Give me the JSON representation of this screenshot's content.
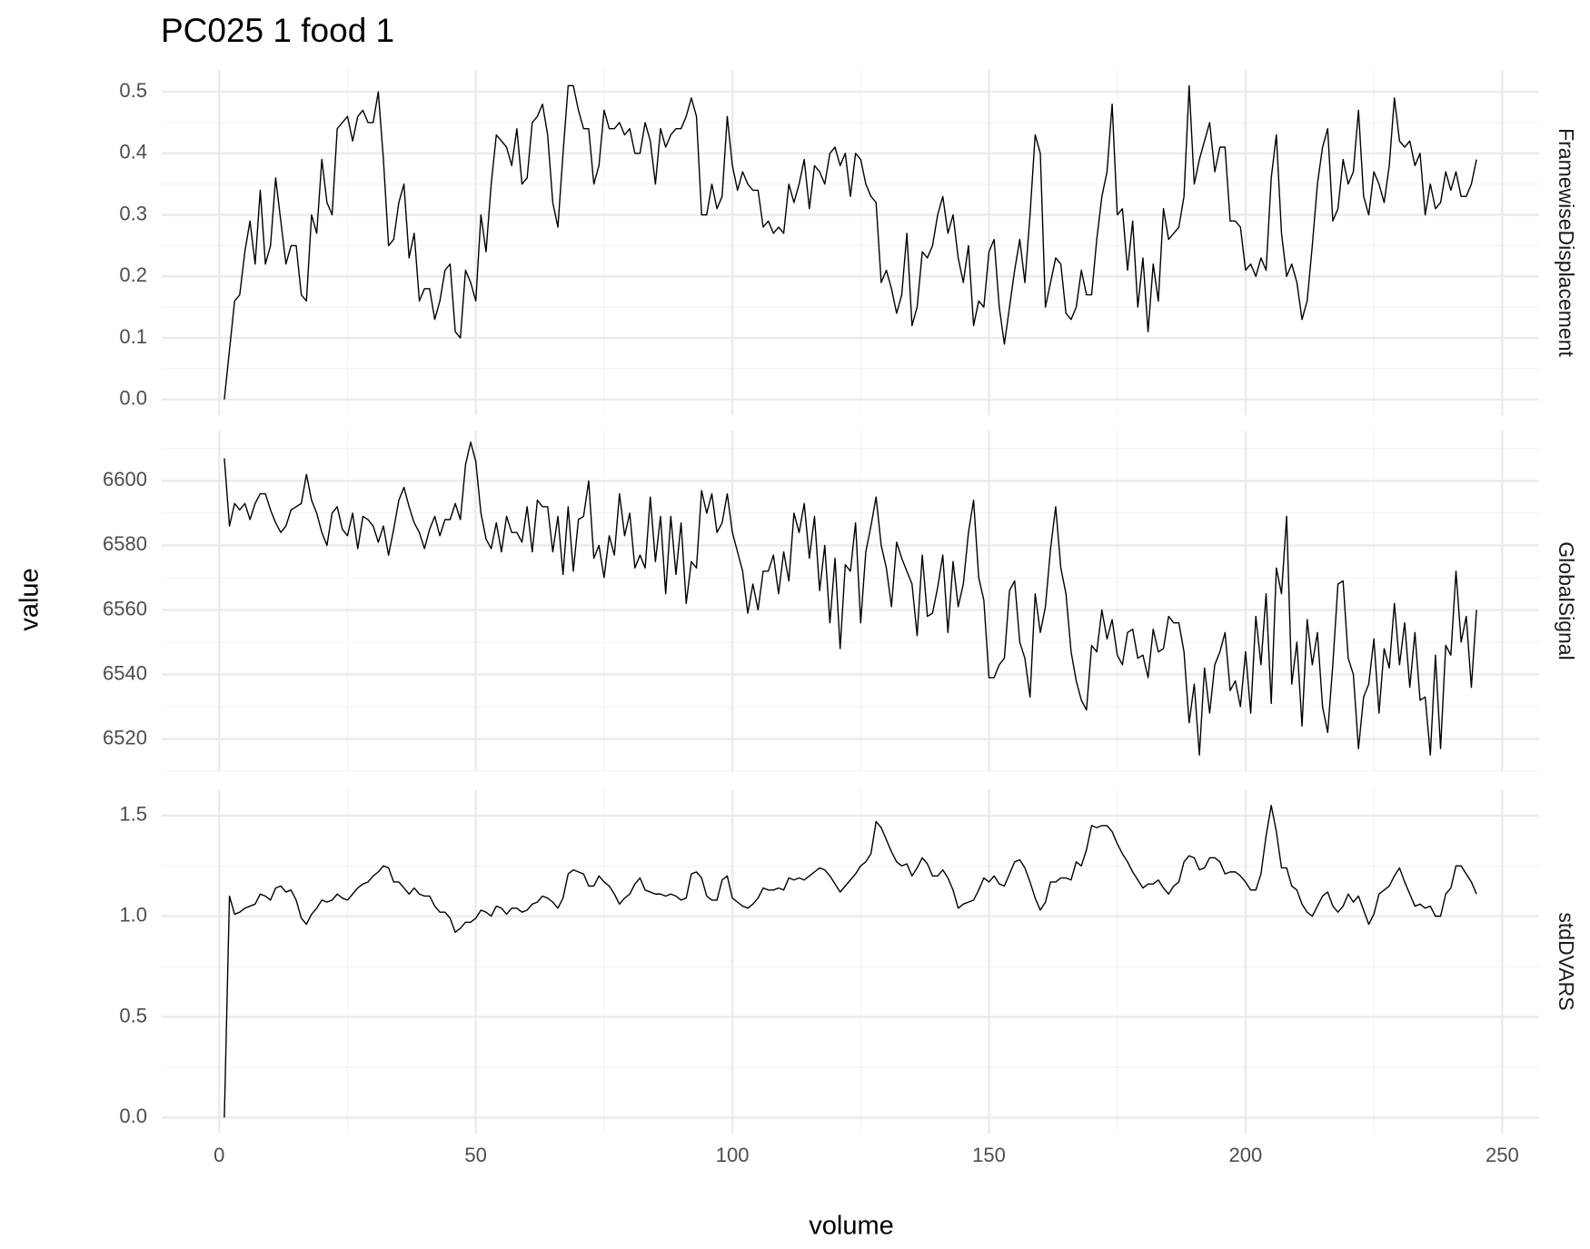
{
  "chart_data": {
    "type": "line",
    "title": "PC025  1  food  1",
    "x_label": "volume",
    "y_label": "value",
    "color": "#000000",
    "grid": true,
    "xlim": [
      -11.2,
      257.2
    ],
    "xticks": [
      0,
      50,
      100,
      150,
      200,
      250
    ],
    "xminor": [
      25,
      75,
      125,
      175,
      225
    ],
    "x": [
      1,
      2,
      3,
      4,
      5,
      6,
      7,
      8,
      9,
      10,
      11,
      12,
      13,
      14,
      15,
      16,
      17,
      18,
      19,
      20,
      21,
      22,
      23,
      24,
      25,
      26,
      27,
      28,
      29,
      30,
      31,
      32,
      33,
      34,
      35,
      36,
      37,
      38,
      39,
      40,
      41,
      42,
      43,
      44,
      45,
      46,
      47,
      48,
      49,
      50,
      51,
      52,
      53,
      54,
      55,
      56,
      57,
      58,
      59,
      60,
      61,
      62,
      63,
      64,
      65,
      66,
      67,
      68,
      69,
      70,
      71,
      72,
      73,
      74,
      75,
      76,
      77,
      78,
      79,
      80,
      81,
      82,
      83,
      84,
      85,
      86,
      87,
      88,
      89,
      90,
      91,
      92,
      93,
      94,
      95,
      96,
      97,
      98,
      99,
      100,
      101,
      102,
      103,
      104,
      105,
      106,
      107,
      108,
      109,
      110,
      111,
      112,
      113,
      114,
      115,
      116,
      117,
      118,
      119,
      120,
      121,
      122,
      123,
      124,
      125,
      126,
      127,
      128,
      129,
      130,
      131,
      132,
      133,
      134,
      135,
      136,
      137,
      138,
      139,
      140,
      141,
      142,
      143,
      144,
      145,
      146,
      147,
      148,
      149,
      150,
      151,
      152,
      153,
      154,
      155,
      156,
      157,
      158,
      159,
      160,
      161,
      162,
      163,
      164,
      165,
      166,
      167,
      168,
      169,
      170,
      171,
      172,
      173,
      174,
      175,
      176,
      177,
      178,
      179,
      180,
      181,
      182,
      183,
      184,
      185,
      186,
      187,
      188,
      189,
      190,
      191,
      192,
      193,
      194,
      195,
      196,
      197,
      198,
      199,
      200,
      201,
      202,
      203,
      204,
      205,
      206,
      207,
      208,
      209,
      210,
      211,
      212,
      213,
      214,
      215,
      216,
      217,
      218,
      219,
      220,
      221,
      222,
      223,
      224,
      225,
      226,
      227,
      228,
      229,
      230,
      231,
      232,
      233,
      234,
      235,
      236,
      237,
      238,
      239,
      240,
      241,
      242,
      243,
      244,
      245
    ],
    "panels": [
      {
        "name": "FramewiseDisplacement",
        "ylim": [
          -0.0255,
          0.5355
        ],
        "yticks": [
          {
            "value": 0,
            "label": "0.0"
          },
          0.1,
          0.2,
          0.3,
          0.4,
          0.5
        ],
        "yminor": [
          0.05,
          0.15,
          0.25,
          0.35,
          0.45
        ],
        "values": [
          0,
          0.08,
          0.16,
          0.17,
          0.24,
          0.29,
          0.22,
          0.34,
          0.22,
          0.25,
          0.36,
          0.29,
          0.22,
          0.25,
          0.25,
          0.17,
          0.16,
          0.3,
          0.27,
          0.39,
          0.32,
          0.3,
          0.44,
          0.45,
          0.46,
          0.42,
          0.46,
          0.47,
          0.45,
          0.45,
          0.5,
          0.39,
          0.25,
          0.26,
          0.32,
          0.35,
          0.23,
          0.27,
          0.16,
          0.18,
          0.18,
          0.13,
          0.16,
          0.21,
          0.22,
          0.11,
          0.1,
          0.21,
          0.19,
          0.16,
          0.3,
          0.24,
          0.35,
          0.43,
          0.42,
          0.41,
          0.38,
          0.44,
          0.35,
          0.36,
          0.45,
          0.46,
          0.48,
          0.43,
          0.32,
          0.28,
          0.4,
          0.51,
          0.51,
          0.47,
          0.44,
          0.44,
          0.35,
          0.38,
          0.47,
          0.44,
          0.44,
          0.45,
          0.43,
          0.44,
          0.4,
          0.4,
          0.45,
          0.42,
          0.35,
          0.44,
          0.41,
          0.43,
          0.44,
          0.44,
          0.46,
          0.49,
          0.46,
          0.3,
          0.3,
          0.35,
          0.31,
          0.33,
          0.46,
          0.38,
          0.34,
          0.37,
          0.35,
          0.34,
          0.34,
          0.28,
          0.29,
          0.27,
          0.28,
          0.27,
          0.35,
          0.32,
          0.35,
          0.39,
          0.31,
          0.38,
          0.37,
          0.35,
          0.4,
          0.41,
          0.38,
          0.4,
          0.33,
          0.4,
          0.39,
          0.35,
          0.33,
          0.32,
          0.19,
          0.21,
          0.18,
          0.14,
          0.17,
          0.27,
          0.12,
          0.15,
          0.24,
          0.23,
          0.25,
          0.3,
          0.33,
          0.27,
          0.3,
          0.23,
          0.19,
          0.25,
          0.12,
          0.16,
          0.15,
          0.24,
          0.26,
          0.15,
          0.09,
          0.15,
          0.21,
          0.26,
          0.19,
          0.3,
          0.43,
          0.4,
          0.15,
          0.19,
          0.23,
          0.22,
          0.14,
          0.13,
          0.15,
          0.21,
          0.17,
          0.17,
          0.26,
          0.33,
          0.37,
          0.48,
          0.3,
          0.31,
          0.21,
          0.29,
          0.15,
          0.23,
          0.11,
          0.22,
          0.16,
          0.31,
          0.26,
          0.27,
          0.28,
          0.33,
          0.51,
          0.35,
          0.39,
          0.42,
          0.45,
          0.37,
          0.41,
          0.41,
          0.29,
          0.29,
          0.28,
          0.21,
          0.22,
          0.2,
          0.23,
          0.21,
          0.36,
          0.43,
          0.27,
          0.2,
          0.22,
          0.19,
          0.13,
          0.16,
          0.25,
          0.35,
          0.41,
          0.44,
          0.29,
          0.31,
          0.39,
          0.35,
          0.37,
          0.47,
          0.33,
          0.3,
          0.37,
          0.35,
          0.32,
          0.38,
          0.49,
          0.42,
          0.41,
          0.42,
          0.38,
          0.4,
          0.3,
          0.35,
          0.31,
          0.32,
          0.37,
          0.34,
          0.37,
          0.33,
          0.33,
          0.35,
          0.39
        ]
      },
      {
        "name": "GlobalSignal",
        "ylim": [
          6510,
          6615.6
        ],
        "yticks": [
          6520,
          6540,
          6560,
          6580,
          6600
        ],
        "yminor": [
          6510,
          6530,
          6550,
          6570,
          6590,
          6610
        ],
        "values": [
          6607,
          6586,
          6593,
          6591,
          6593,
          6588,
          6593,
          6596,
          6596,
          6591,
          6587,
          6584,
          6586,
          6591,
          6592,
          6593,
          6602,
          6594,
          6590,
          6584,
          6580,
          6590,
          6592,
          6585,
          6583,
          6590,
          6579,
          6589,
          6588,
          6586,
          6581,
          6586,
          6577,
          6585,
          6594,
          6598,
          6592,
          6587,
          6584,
          6579,
          6585,
          6589,
          6583,
          6588,
          6588,
          6593,
          6588,
          6605,
          6612,
          6606,
          6590,
          6582,
          6579,
          6587,
          6578,
          6589,
          6584,
          6584,
          6581,
          6592,
          6578,
          6594,
          6592,
          6592,
          6578,
          6589,
          6571,
          6592,
          6572,
          6588,
          6589,
          6600,
          6576,
          6580,
          6570,
          6583,
          6577,
          6596,
          6583,
          6590,
          6573,
          6577,
          6573,
          6595,
          6575,
          6589,
          6565,
          6589,
          6571,
          6587,
          6562,
          6575,
          6573,
          6597,
          6590,
          6596,
          6584,
          6587,
          6596,
          6584,
          6578,
          6572,
          6559,
          6568,
          6560,
          6572,
          6572,
          6577,
          6565,
          6578,
          6569,
          6590,
          6584,
          6593,
          6576,
          6589,
          6566,
          6580,
          6556,
          6576,
          6548,
          6574,
          6572,
          6587,
          6556,
          6578,
          6586,
          6595,
          6580,
          6573,
          6561,
          6581,
          6576,
          6572,
          6568,
          6552,
          6577,
          6558,
          6559,
          6567,
          6577,
          6553,
          6575,
          6561,
          6568,
          6584,
          6594,
          6570,
          6563,
          6539,
          6539,
          6543,
          6545,
          6566,
          6569,
          6550,
          6545,
          6533,
          6565,
          6553,
          6561,
          6579,
          6592,
          6573,
          6565,
          6547,
          6538,
          6532,
          6529,
          6549,
          6547,
          6560,
          6551,
          6557,
          6546,
          6543,
          6553,
          6554,
          6545,
          6546,
          6539,
          6554,
          6547,
          6548,
          6558,
          6556,
          6556,
          6547,
          6525,
          6537,
          6515,
          6542,
          6528,
          6543,
          6547,
          6553,
          6535,
          6538,
          6530,
          6547,
          6528,
          6558,
          6543,
          6565,
          6531,
          6573,
          6565,
          6589,
          6537,
          6550,
          6524,
          6557,
          6543,
          6553,
          6530,
          6522,
          6543,
          6568,
          6569,
          6545,
          6540,
          6517,
          6533,
          6537,
          6551,
          6528,
          6548,
          6542,
          6562,
          6543,
          6556,
          6536,
          6553,
          6532,
          6533,
          6515,
          6546,
          6517,
          6549,
          6546,
          6572,
          6550,
          6558,
          6536,
          6560
        ]
      },
      {
        "name": "stdDVARS",
        "ylim": [
          -0.08,
          1.63
        ],
        "yticks": [
          {
            "value": 0,
            "label": "0.0"
          },
          0.5,
          {
            "value": 1,
            "label": "1.0"
          },
          1.5
        ],
        "yminor": [
          0.25,
          0.75,
          1.25
        ],
        "values": [
          0,
          1.1,
          1.01,
          1.02,
          1.04,
          1.05,
          1.06,
          1.11,
          1.1,
          1.08,
          1.14,
          1.15,
          1.12,
          1.13,
          1.08,
          0.99,
          0.96,
          1.01,
          1.04,
          1.08,
          1.07,
          1.08,
          1.11,
          1.09,
          1.08,
          1.11,
          1.14,
          1.16,
          1.17,
          1.2,
          1.22,
          1.25,
          1.24,
          1.17,
          1.17,
          1.14,
          1.11,
          1.14,
          1.11,
          1.1,
          1.1,
          1.05,
          1.02,
          1.02,
          0.99,
          0.92,
          0.94,
          0.97,
          0.97,
          0.99,
          1.03,
          1.02,
          1.0,
          1.05,
          1.04,
          1.01,
          1.04,
          1.04,
          1.02,
          1.03,
          1.06,
          1.07,
          1.1,
          1.09,
          1.07,
          1.04,
          1.09,
          1.21,
          1.23,
          1.22,
          1.21,
          1.15,
          1.15,
          1.2,
          1.17,
          1.15,
          1.11,
          1.06,
          1.09,
          1.11,
          1.16,
          1.19,
          1.13,
          1.12,
          1.11,
          1.11,
          1.1,
          1.11,
          1.1,
          1.08,
          1.09,
          1.21,
          1.22,
          1.19,
          1.1,
          1.08,
          1.08,
          1.18,
          1.2,
          1.09,
          1.07,
          1.05,
          1.04,
          1.06,
          1.09,
          1.14,
          1.13,
          1.13,
          1.14,
          1.13,
          1.19,
          1.18,
          1.19,
          1.18,
          1.2,
          1.22,
          1.24,
          1.23,
          1.2,
          1.16,
          1.12,
          1.15,
          1.18,
          1.21,
          1.25,
          1.27,
          1.31,
          1.47,
          1.44,
          1.38,
          1.32,
          1.27,
          1.25,
          1.26,
          1.2,
          1.24,
          1.29,
          1.26,
          1.2,
          1.2,
          1.23,
          1.19,
          1.13,
          1.04,
          1.06,
          1.07,
          1.08,
          1.13,
          1.19,
          1.17,
          1.2,
          1.16,
          1.15,
          1.21,
          1.27,
          1.28,
          1.24,
          1.17,
          1.09,
          1.03,
          1.07,
          1.17,
          1.17,
          1.19,
          1.19,
          1.18,
          1.27,
          1.25,
          1.33,
          1.45,
          1.44,
          1.45,
          1.45,
          1.42,
          1.36,
          1.31,
          1.27,
          1.22,
          1.18,
          1.14,
          1.16,
          1.16,
          1.18,
          1.14,
          1.11,
          1.15,
          1.17,
          1.27,
          1.3,
          1.29,
          1.23,
          1.24,
          1.29,
          1.29,
          1.27,
          1.21,
          1.22,
          1.22,
          1.2,
          1.17,
          1.13,
          1.13,
          1.21,
          1.4,
          1.55,
          1.42,
          1.24,
          1.24,
          1.15,
          1.13,
          1.06,
          1.02,
          1.0,
          1.05,
          1.1,
          1.12,
          1.05,
          1.02,
          1.05,
          1.11,
          1.07,
          1.1,
          1.03,
          0.96,
          1.01,
          1.11,
          1.13,
          1.15,
          1.2,
          1.24,
          1.17,
          1.11,
          1.05,
          1.06,
          1.04,
          1.05,
          1.0,
          1.0,
          1.11,
          1.14,
          1.25,
          1.25,
          1.21,
          1.17,
          1.11
        ]
      }
    ]
  }
}
